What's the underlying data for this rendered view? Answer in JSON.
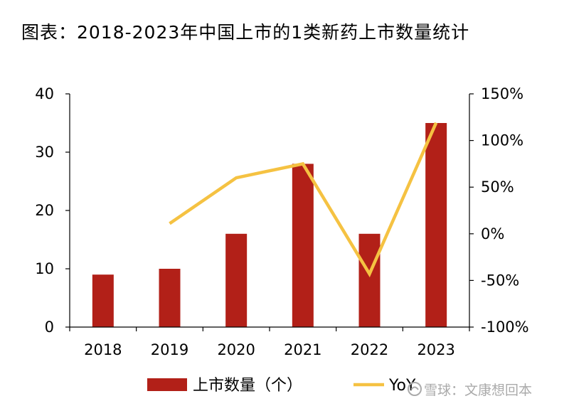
{
  "title": "图表：2018-2023年中国上市的1类新药上市数量统计",
  "colors": {
    "bar": "#b22018",
    "line": "#f5c242",
    "axis": "#000000"
  },
  "watermark": {
    "text": "雪球：文康想回本",
    "icon": "snowball-logo"
  },
  "chart_data": {
    "type": "bar",
    "categories": [
      "2018",
      "2019",
      "2020",
      "2021",
      "2022",
      "2023"
    ],
    "series": [
      {
        "name": "上市数量（个）",
        "type": "bar",
        "axis": "left",
        "values": [
          9,
          10,
          16,
          28,
          16,
          35
        ]
      },
      {
        "name": "YoY",
        "type": "line",
        "axis": "right",
        "values": [
          null,
          0.11,
          0.6,
          0.75,
          -0.43,
          1.19
        ]
      }
    ],
    "left_axis": {
      "ylim": [
        0,
        40
      ],
      "ticks": [
        "0",
        "10",
        "20",
        "30",
        "40"
      ],
      "tick_values": [
        0,
        10,
        20,
        30,
        40
      ]
    },
    "right_axis": {
      "ylim": [
        -1.0,
        1.5
      ],
      "ticks": [
        "-100%",
        "-50%",
        "0%",
        "50%",
        "100%",
        "150%"
      ],
      "tick_values": [
        -1.0,
        -0.5,
        0,
        0.5,
        1.0,
        1.5
      ]
    },
    "grid": false,
    "legend_position": "bottom"
  }
}
